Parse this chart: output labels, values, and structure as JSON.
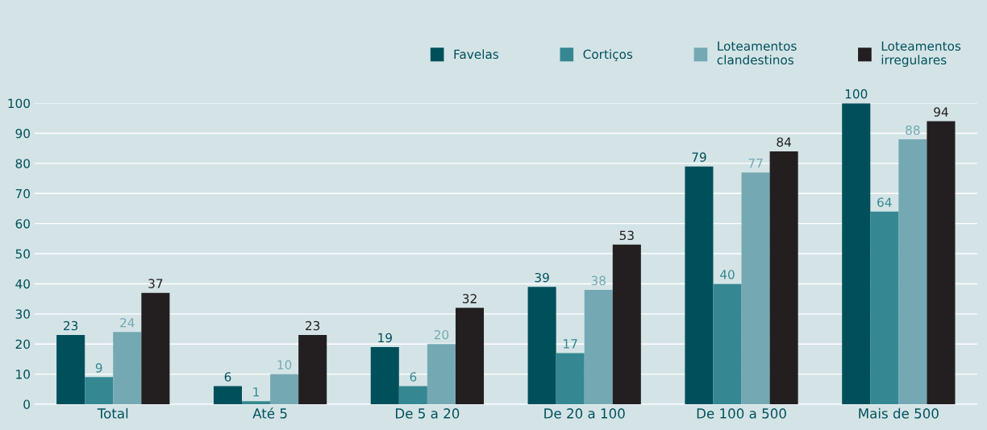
{
  "chart_data": {
    "type": "bar",
    "categories": [
      "Total",
      "Até 5",
      "De 5 a 20",
      "De 20 a 100",
      "De 100 a 500",
      "Mais de 500"
    ],
    "series": [
      {
        "name": "Favelas",
        "color": "#00505c",
        "values": [
          23,
          6,
          19,
          39,
          79,
          100
        ]
      },
      {
        "name": "Cortiços",
        "color": "#358892",
        "values": [
          9,
          1,
          6,
          17,
          40,
          64
        ]
      },
      {
        "name": "Loteamentos\nclandestinos",
        "color": "#74a9b4",
        "values": [
          24,
          10,
          20,
          38,
          77,
          88
        ]
      },
      {
        "name": "Loteamentos\nirregulares",
        "color": "#231f20",
        "values": [
          37,
          23,
          32,
          53,
          84,
          94
        ]
      }
    ],
    "ylim": [
      0,
      100
    ],
    "yticks": [
      0,
      10,
      20,
      30,
      40,
      50,
      60,
      70,
      80,
      90,
      100
    ],
    "grid": "y",
    "legend": "top right",
    "data_labels": true
  }
}
